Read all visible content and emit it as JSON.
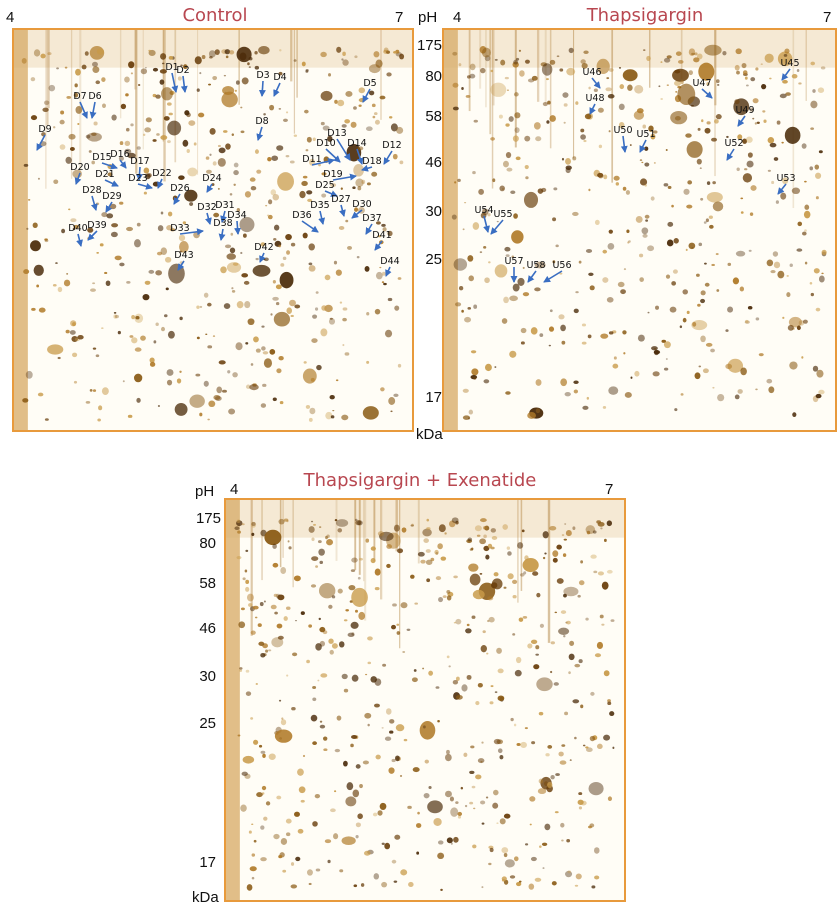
{
  "panels": {
    "control": {
      "title": "Control",
      "ph_left": "4",
      "ph_right": "7"
    },
    "thapsigargin": {
      "title": "Thapsigargin",
      "ph_left": "4",
      "ph_right": "7"
    },
    "combo": {
      "title": "Thapsigargin + Exenatide",
      "ph_left": "4",
      "ph_right": "7"
    }
  },
  "axis": {
    "ph_label": "pH",
    "kda_label": "kDa",
    "mw_ticks": [
      "175",
      "80",
      "58",
      "46",
      "30",
      "25",
      "17"
    ]
  },
  "colors": {
    "title": "#b84750",
    "arrow": "#3a6ec2",
    "frame": "#e89a3c",
    "spot": "#8a5a14"
  },
  "spot_labels": {
    "control": [
      "D1",
      "D2",
      "D3",
      "D4",
      "D5",
      "D6",
      "D7",
      "D8",
      "D9",
      "D10",
      "D11",
      "D12",
      "D13",
      "D14",
      "D15",
      "D16",
      "D17",
      "D18",
      "D19",
      "D20",
      "D21",
      "D22",
      "D23",
      "D24",
      "D25",
      "D26",
      "D27",
      "D28",
      "D29",
      "D30",
      "D31",
      "D32",
      "D33",
      "D34",
      "D35",
      "D36",
      "D37",
      "D38",
      "D39",
      "D40",
      "D41",
      "D42",
      "D43",
      "D44"
    ],
    "thapsigargin": [
      "U45",
      "U46",
      "U47",
      "U48",
      "U49",
      "U50",
      "U51",
      "U52",
      "U53",
      "U54",
      "U55",
      "U56",
      "U57",
      "U58"
    ]
  }
}
